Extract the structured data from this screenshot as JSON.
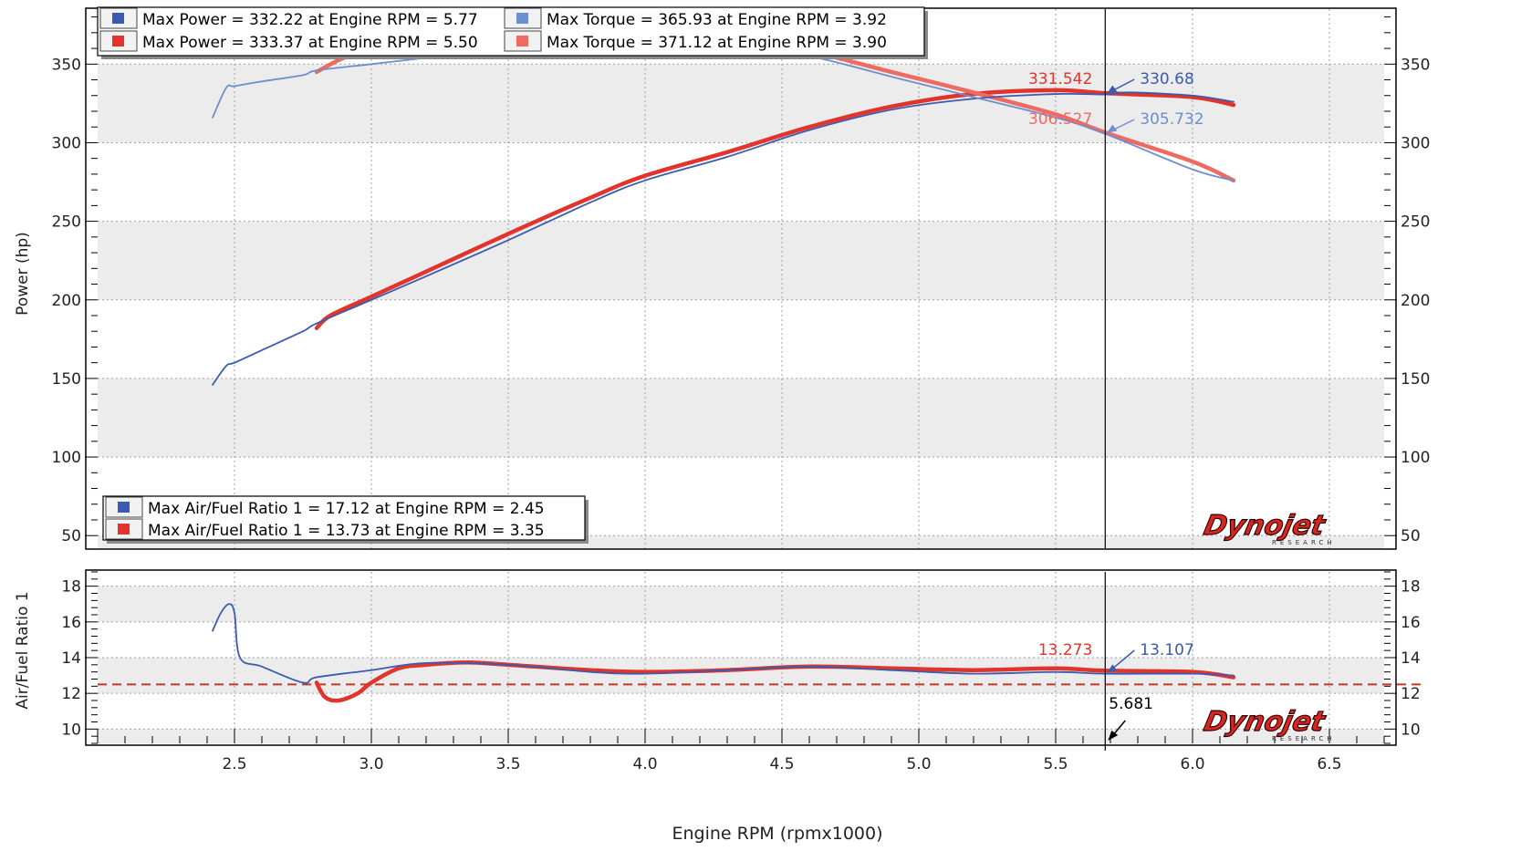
{
  "colors": {
    "blue": "#3a5bb0",
    "blue_light": "#6c8fd0",
    "red": "#e0342c",
    "red_light": "#ef6b62",
    "grid": "#9aa0a8",
    "band": "#ececec",
    "cursor": "#000000",
    "afr_ref": "#c0392b"
  },
  "brand": {
    "logo_text": "Dynojet",
    "logo_sub": "RESEARCH"
  },
  "chart_data": [
    {
      "type": "line",
      "panel": "power-torque",
      "xlabel": "Engine RPM (rpmx1000)",
      "ylabel": "Power (hp)",
      "xlim": [
        2.0,
        6.7
      ],
      "ylim": [
        42,
        385
      ],
      "yticks": [
        50,
        100,
        150,
        200,
        250,
        300,
        350
      ],
      "grid": true,
      "legend": {
        "placement": "top-left",
        "entries": [
          {
            "label": "Max Power = 332.22 at Engine RPM = 5.77",
            "color": "#3a5bb0"
          },
          {
            "label": "Max Torque = 365.93 at Engine RPM = 3.92",
            "color": "#6c8fd0"
          },
          {
            "label": "Max Power = 333.37 at Engine RPM = 5.50",
            "color": "#e0342c"
          },
          {
            "label": "Max Torque = 371.12 at Engine RPM = 3.90",
            "color": "#ef6b62"
          }
        ]
      },
      "cursor_x": 5.681,
      "cursor_labels": [
        {
          "text": "331.542",
          "color": "#e0342c",
          "y": 331.5
        },
        {
          "text": "330.68",
          "color": "#3a5bb0",
          "y": 330.7
        },
        {
          "text": "306.527",
          "color": "#ef6b62",
          "y": 306.5
        },
        {
          "text": "305.732",
          "color": "#6c8fd0",
          "y": 305.7
        }
      ],
      "series": [
        {
          "id": "power-blue",
          "color": "#3a5bb0",
          "width": 1.8,
          "x": [
            2.42,
            2.47,
            2.5,
            2.6,
            2.75,
            2.8,
            3.0,
            3.2,
            3.5,
            3.8,
            4.0,
            4.3,
            4.6,
            4.9,
            5.2,
            5.5,
            5.681,
            5.77,
            6.0,
            6.15
          ],
          "values": [
            146,
            158,
            160,
            168,
            180,
            185,
            200,
            215,
            238,
            262,
            276,
            291,
            308,
            321,
            328,
            331,
            330.7,
            332,
            330,
            326
          ]
        },
        {
          "id": "torque-blue",
          "color": "#6c8fd0",
          "width": 1.8,
          "x": [
            2.42,
            2.47,
            2.5,
            2.6,
            2.75,
            2.8,
            3.0,
            3.2,
            3.5,
            3.92,
            4.3,
            4.6,
            4.9,
            5.2,
            5.5,
            5.681,
            6.0,
            6.15
          ],
          "values": [
            316,
            335,
            336,
            339,
            343,
            346,
            350,
            354,
            360,
            366,
            361,
            355,
            342,
            329,
            316,
            305.7,
            283,
            276
          ]
        },
        {
          "id": "power-red",
          "color": "#e0342c",
          "width": 4.5,
          "x": [
            2.8,
            2.85,
            3.0,
            3.2,
            3.5,
            3.8,
            4.0,
            4.3,
            4.6,
            4.9,
            5.2,
            5.5,
            5.681,
            6.0,
            6.15
          ],
          "values": [
            182,
            190,
            202,
            218,
            242,
            265,
            279,
            294,
            310,
            323,
            331,
            333.4,
            331.5,
            329,
            324
          ]
        },
        {
          "id": "torque-red",
          "color": "#ef6b62",
          "width": 4.5,
          "x": [
            2.8,
            2.9,
            3.0,
            3.2,
            3.5,
            3.9,
            4.3,
            4.6,
            4.9,
            5.2,
            5.5,
            5.681,
            6.0,
            6.15
          ],
          "values": [
            345,
            354,
            358,
            362,
            366,
            371,
            365,
            358,
            345,
            332,
            318,
            306.5,
            288,
            276
          ]
        }
      ]
    },
    {
      "type": "line",
      "panel": "air-fuel",
      "xlabel": "Engine RPM (rpmx1000)",
      "ylabel": "Air/Fuel Ratio 1",
      "xlim": [
        2.0,
        6.7
      ],
      "ylim": [
        9.2,
        18.8
      ],
      "yticks": [
        10,
        12,
        14,
        16,
        18
      ],
      "xticks": [
        2.5,
        3.0,
        3.5,
        4.0,
        4.5,
        5.0,
        5.5,
        6.0,
        6.5
      ],
      "xticklabels": [
        "2.5",
        "3.0",
        "3.5",
        "4.0",
        "4.5",
        "5.0",
        "5.5",
        "6.0",
        "6.5"
      ],
      "grid": true,
      "reference_line": 12.5,
      "legend": {
        "placement": "above-left",
        "entries": [
          {
            "label": "Max Air/Fuel Ratio 1 = 17.12 at Engine RPM = 2.45",
            "color": "#3a5bb0"
          },
          {
            "label": "Max Air/Fuel Ratio 1 = 13.73 at Engine RPM = 3.35",
            "color": "#e0342c"
          }
        ]
      },
      "cursor_x": 5.681,
      "cursor_value_label": "5.681",
      "cursor_labels": [
        {
          "text": "13.273",
          "color": "#e0342c",
          "y": 13.27
        },
        {
          "text": "13.107",
          "color": "#3a5bb0",
          "y": 13.11
        }
      ],
      "series": [
        {
          "id": "afr-blue",
          "color": "#3a5bb0",
          "width": 1.8,
          "x": [
            2.42,
            2.45,
            2.48,
            2.5,
            2.52,
            2.6,
            2.75,
            2.8,
            3.0,
            3.2,
            3.5,
            3.8,
            4.0,
            4.3,
            4.6,
            4.9,
            5.2,
            5.5,
            5.681,
            6.0,
            6.15
          ],
          "values": [
            15.5,
            16.5,
            17.0,
            16.5,
            14.0,
            13.5,
            12.6,
            12.9,
            13.3,
            13.7,
            13.6,
            13.2,
            13.1,
            13.3,
            13.5,
            13.3,
            13.1,
            13.2,
            13.1,
            13.1,
            13.0
          ]
        },
        {
          "id": "afr-red",
          "color": "#e0342c",
          "width": 4.5,
          "x": [
            2.8,
            2.83,
            2.88,
            2.95,
            3.0,
            3.1,
            3.2,
            3.35,
            3.5,
            3.8,
            4.0,
            4.3,
            4.6,
            4.9,
            5.2,
            5.5,
            5.681,
            6.0,
            6.15
          ],
          "values": [
            12.6,
            11.8,
            11.6,
            12.0,
            12.6,
            13.4,
            13.6,
            13.73,
            13.6,
            13.3,
            13.2,
            13.3,
            13.5,
            13.4,
            13.3,
            13.4,
            13.27,
            13.2,
            12.9
          ]
        }
      ]
    }
  ]
}
